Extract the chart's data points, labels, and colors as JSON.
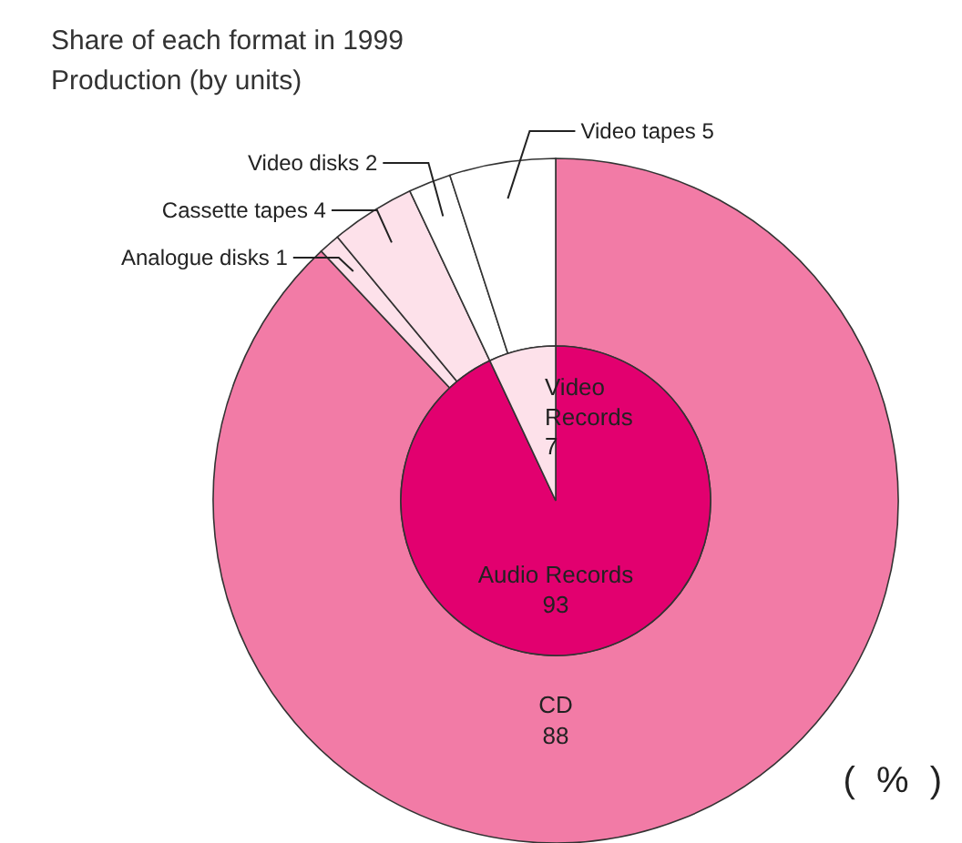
{
  "chart_data": [
    {
      "type": "donut",
      "title": "Share of each format in 1999",
      "subtitle": "Production (by units)",
      "categories": [
        "CD",
        "Analogue disks 1",
        "Cassette  tapes 4",
        "Video disks 2",
        "Video tapes 5"
      ],
      "values": [
        88,
        1,
        4,
        2,
        5
      ],
      "value_labels": [
        "88",
        null,
        null,
        null,
        null
      ],
      "colors": [
        "#f27ba6",
        "#fde1ea",
        "#fde1ea",
        "#ffffff",
        "#ffffff"
      ],
      "annotations": [
        "( % )"
      ],
      "legend": false
    },
    {
      "type": "pie",
      "categories": [
        "Audio Records",
        "Video Records"
      ],
      "values": [
        93,
        7
      ],
      "colors": [
        "#e2006f",
        "#fde1ea"
      ],
      "legend": false,
      "data_labels": true
    }
  ]
}
